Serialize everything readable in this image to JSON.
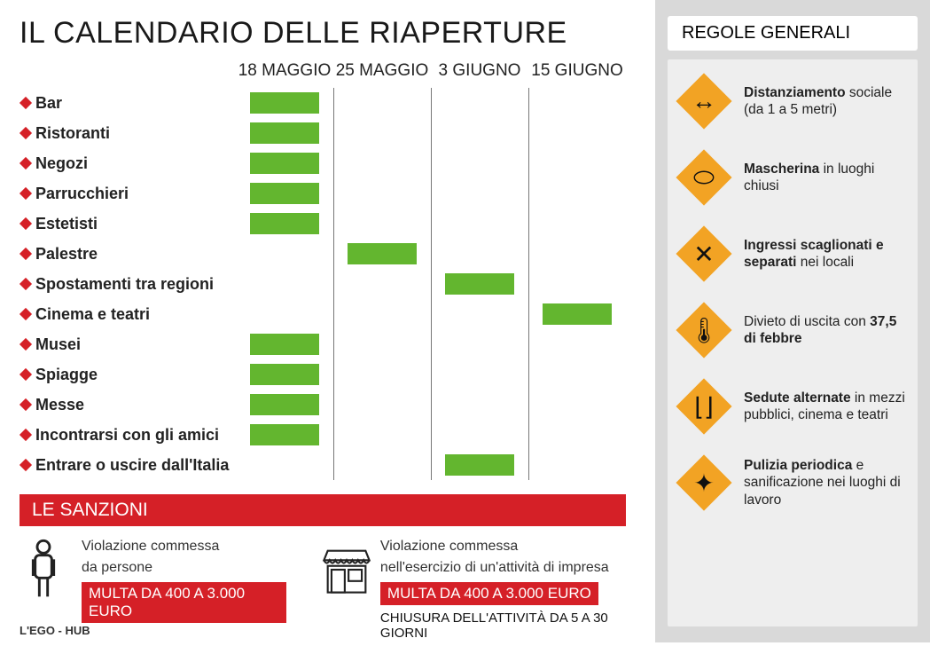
{
  "title": "IL CALENDARIO DELLE RIAPERTURE",
  "columns": [
    "18 MAGGIO",
    "25 MAGGIO",
    "3 GIUGNO",
    "15 GIUGNO"
  ],
  "bar_color": "#63b62f",
  "diamond_color": "#d52027",
  "rows": [
    {
      "label": "Bar",
      "col": 0
    },
    {
      "label": "Ristoranti",
      "col": 0
    },
    {
      "label": "Negozi",
      "col": 0
    },
    {
      "label": "Parrucchieri",
      "col": 0
    },
    {
      "label": "Estetisti",
      "col": 0
    },
    {
      "label": "Palestre",
      "col": 1
    },
    {
      "label": "Spostamenti tra regioni",
      "col": 2
    },
    {
      "label": "Cinema e teatri",
      "col": 3
    },
    {
      "label": "Musei",
      "col": 0
    },
    {
      "label": "Spiagge",
      "col": 0
    },
    {
      "label": "Messe",
      "col": 0
    },
    {
      "label": "Incontrarsi con gli amici",
      "col": 0
    },
    {
      "label": "Entrare o uscire dall'Italia",
      "col": 2
    }
  ],
  "sanctions_title": "LE SANZIONI",
  "sanctions": [
    {
      "lines": [
        "Violazione commessa",
        "da persone"
      ],
      "red": "MULTA DA 400 A 3.000 EURO",
      "black": ""
    },
    {
      "lines": [
        "Violazione commessa",
        "nell'esercizio di un'attività di impresa"
      ],
      "red": "MULTA DA 400 A 3.000 EURO",
      "black": "CHIUSURA DELL'ATTIVITÀ DA 5 A 30 GIORNI"
    }
  ],
  "rules_title": "REGOLE GENERALI",
  "rules": [
    {
      "bold": "Distanziamento",
      "rest": " sociale (da 1 a 5 metri)",
      "glyph": "↔"
    },
    {
      "bold": "Mascherina",
      "rest": " in luoghi chiusi",
      "glyph": "⬭"
    },
    {
      "bold": "Ingressi scaglionati e separati",
      "rest": " nei locali",
      "glyph": "✕"
    },
    {
      "bold": "",
      "rest": "Divieto di uscita con ",
      "tail_bold": "37,5 di febbre",
      "glyph": "🌡"
    },
    {
      "bold": "Sedute alternate",
      "rest": " in mezzi pubblici, cinema e teatri",
      "glyph": "⌊⌋"
    },
    {
      "bold": "Pulizia periodica",
      "rest": " e sanificazione nei luoghi di lavoro",
      "glyph": "✦"
    }
  ],
  "credit": "L'EGO - HUB"
}
